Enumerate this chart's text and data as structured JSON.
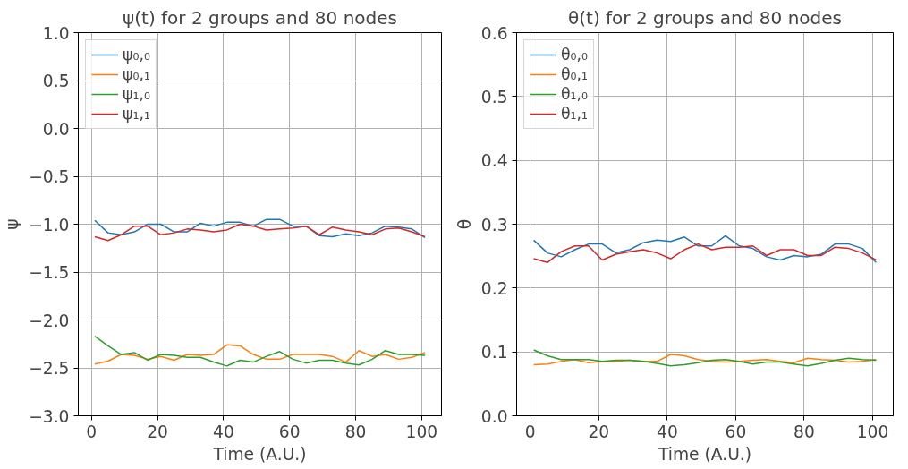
{
  "chart_data": [
    {
      "type": "line",
      "title": "ψ(t) for 2 groups and 80 nodes",
      "xlabel": "Time (A.U.)",
      "ylabel": "ψ",
      "x": [
        1,
        5,
        9,
        13,
        17,
        21,
        25,
        29,
        33,
        37,
        41,
        45,
        49,
        53,
        57,
        61,
        65,
        69,
        73,
        77,
        81,
        85,
        89,
        93,
        97,
        101
      ],
      "series": [
        {
          "name": "ψ₀,₀",
          "color": "#1f77b4",
          "values": [
            -0.96,
            -1.09,
            -1.11,
            -1.08,
            -1.0,
            -1.0,
            -1.08,
            -1.08,
            -0.99,
            -1.02,
            -0.98,
            -0.98,
            -1.02,
            -0.95,
            -0.95,
            -1.02,
            -1.02,
            -1.12,
            -1.13,
            -1.1,
            -1.12,
            -1.09,
            -1.02,
            -1.03,
            -1.05,
            -1.14
          ]
        },
        {
          "name": "ψ₀,₁",
          "color": "#ff7f0e",
          "values": [
            -2.46,
            -2.43,
            -2.36,
            -2.37,
            -2.41,
            -2.38,
            -2.42,
            -2.36,
            -2.37,
            -2.36,
            -2.26,
            -2.27,
            -2.36,
            -2.41,
            -2.41,
            -2.36,
            -2.36,
            -2.36,
            -2.38,
            -2.44,
            -2.32,
            -2.38,
            -2.36,
            -2.41,
            -2.39,
            -2.34
          ]
        },
        {
          "name": "ψ₁,₀",
          "color": "#2ca02c",
          "values": [
            -2.17,
            -2.27,
            -2.36,
            -2.34,
            -2.42,
            -2.36,
            -2.37,
            -2.39,
            -2.39,
            -2.44,
            -2.48,
            -2.42,
            -2.44,
            -2.38,
            -2.33,
            -2.41,
            -2.45,
            -2.42,
            -2.42,
            -2.45,
            -2.47,
            -2.41,
            -2.32,
            -2.36,
            -2.36,
            -2.37
          ]
        },
        {
          "name": "ψ₁,₁",
          "color": "#d62728",
          "values": [
            -1.13,
            -1.17,
            -1.11,
            -1.02,
            -1.02,
            -1.11,
            -1.09,
            -1.05,
            -1.06,
            -1.08,
            -1.06,
            -1.0,
            -1.02,
            -1.06,
            -1.05,
            -1.04,
            -1.02,
            -1.11,
            -1.03,
            -1.06,
            -1.08,
            -1.11,
            -1.05,
            -1.04,
            -1.08,
            -1.13
          ]
        }
      ],
      "xlim": [
        -4,
        106
      ],
      "xticks": [
        0,
        20,
        40,
        60,
        80,
        100
      ],
      "ylim": [
        -3.0,
        1.0
      ],
      "yticks": [
        {
          "value": -3.0,
          "label": "−3.0"
        },
        {
          "value": -2.5,
          "label": "−2.5"
        },
        {
          "value": -2.0,
          "label": "−2.0"
        },
        {
          "value": -1.5,
          "label": "−1.5"
        },
        {
          "value": -1.0,
          "label": "−1.0"
        },
        {
          "value": -0.5,
          "label": "−0.5"
        },
        {
          "value": 0.0,
          "label": "0.0"
        },
        {
          "value": 0.5,
          "label": "0.5"
        },
        {
          "value": 1.0,
          "label": "1.0"
        }
      ],
      "grid": true,
      "legend": "top left",
      "marker": "none",
      "line_style": "solid"
    },
    {
      "type": "line",
      "title": "θ(t) for 2 groups and 80 nodes",
      "xlabel": "Time (A.U.)",
      "ylabel": "θ",
      "x": [
        1,
        5,
        9,
        13,
        17,
        21,
        25,
        29,
        33,
        37,
        41,
        45,
        49,
        53,
        57,
        61,
        65,
        69,
        73,
        77,
        81,
        85,
        89,
        93,
        97,
        101
      ],
      "series": [
        {
          "name": "θ₀,₀",
          "color": "#1f77b4",
          "values": [
            0.275,
            0.255,
            0.249,
            0.26,
            0.269,
            0.269,
            0.255,
            0.26,
            0.271,
            0.275,
            0.273,
            0.28,
            0.266,
            0.266,
            0.282,
            0.266,
            0.262,
            0.249,
            0.244,
            0.251,
            0.249,
            0.253,
            0.269,
            0.269,
            0.262,
            0.24
          ]
        },
        {
          "name": "θ₀,₁",
          "color": "#ff7f0e",
          "values": [
            0.08,
            0.081,
            0.085,
            0.088,
            0.083,
            0.085,
            0.085,
            0.087,
            0.085,
            0.085,
            0.096,
            0.094,
            0.088,
            0.085,
            0.084,
            0.085,
            0.087,
            0.088,
            0.085,
            0.083,
            0.09,
            0.088,
            0.087,
            0.084,
            0.085,
            0.088
          ]
        },
        {
          "name": "θ₁,₀",
          "color": "#2ca02c",
          "values": [
            0.103,
            0.094,
            0.088,
            0.088,
            0.088,
            0.085,
            0.087,
            0.087,
            0.085,
            0.082,
            0.078,
            0.08,
            0.083,
            0.087,
            0.088,
            0.085,
            0.081,
            0.084,
            0.084,
            0.081,
            0.078,
            0.082,
            0.087,
            0.09,
            0.088,
            0.087
          ]
        },
        {
          "name": "θ₁,₁",
          "color": "#d62728",
          "values": [
            0.246,
            0.24,
            0.257,
            0.266,
            0.266,
            0.244,
            0.253,
            0.257,
            0.26,
            0.255,
            0.246,
            0.26,
            0.269,
            0.26,
            0.264,
            0.264,
            0.266,
            0.251,
            0.26,
            0.26,
            0.251,
            0.251,
            0.264,
            0.262,
            0.255,
            0.244
          ]
        }
      ],
      "xlim": [
        -4,
        106
      ],
      "xticks": [
        0,
        20,
        40,
        60,
        80,
        100
      ],
      "ylim": [
        0.0,
        0.6
      ],
      "yticks": [
        {
          "value": 0.0,
          "label": "0.0"
        },
        {
          "value": 0.1,
          "label": "0.1"
        },
        {
          "value": 0.2,
          "label": "0.2"
        },
        {
          "value": 0.3,
          "label": "0.3"
        },
        {
          "value": 0.4,
          "label": "0.4"
        },
        {
          "value": 0.5,
          "label": "0.5"
        },
        {
          "value": 0.6,
          "label": "0.6"
        }
      ],
      "grid": true,
      "legend": "top left",
      "marker": "none",
      "line_style": "solid"
    }
  ]
}
